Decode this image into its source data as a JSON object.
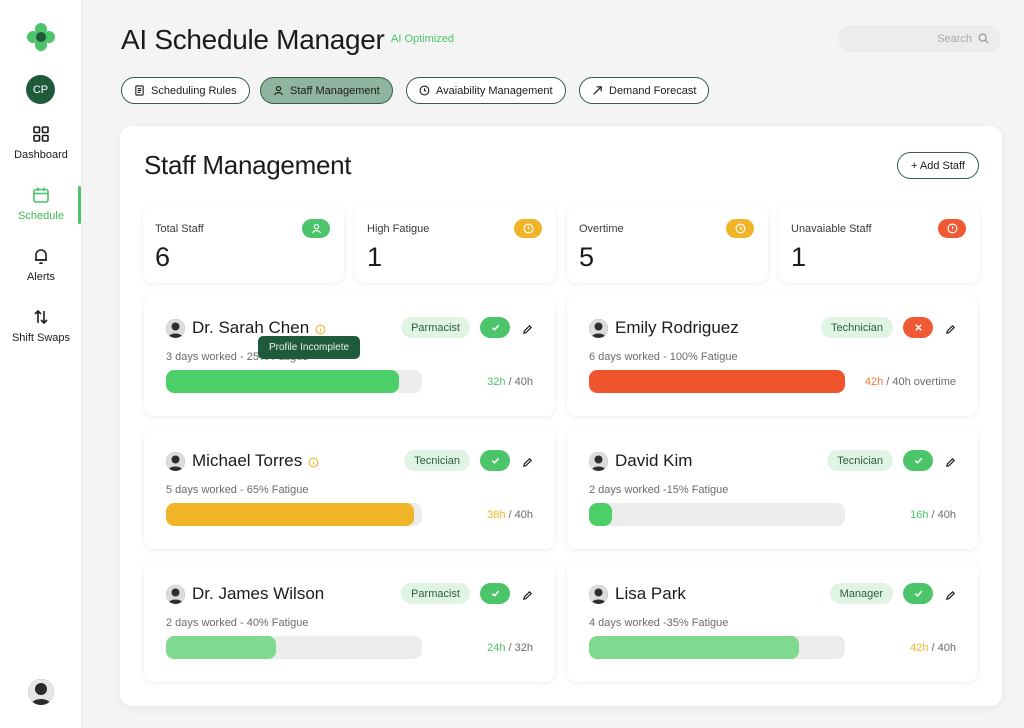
{
  "app": {
    "title": "AI Schedule Manager",
    "badge": "AI Optimized",
    "user_initials": "CP"
  },
  "search": {
    "placeholder": "Search"
  },
  "sidebar": {
    "items": [
      {
        "label": "Dashboard",
        "icon": "grid-icon"
      },
      {
        "label": "Schedule",
        "icon": "calendar-icon",
        "active": true
      },
      {
        "label": "Alerts",
        "icon": "bell-icon"
      },
      {
        "label": "Shift Swaps",
        "icon": "swap-icon"
      }
    ]
  },
  "tabs": [
    {
      "label": "Scheduling Rules",
      "icon": "document-icon"
    },
    {
      "label": "Staff Management",
      "icon": "person-icon",
      "active": true
    },
    {
      "label": "Avaiability Management",
      "icon": "clock-icon"
    },
    {
      "label": "Demand Forecast",
      "icon": "trend-arrow-icon"
    }
  ],
  "section": {
    "title": "Staff Management",
    "add_label": "+ Add Staff"
  },
  "stats": [
    {
      "label": "Total Staff",
      "value": "6",
      "color": "#4cc46a",
      "icon": "person-icon"
    },
    {
      "label": "High Fatigue",
      "value": "1",
      "color": "#f0b429",
      "icon": "alert-circle-icon"
    },
    {
      "label": "Overtime",
      "value": "5",
      "color": "#f0b429",
      "icon": "clock-icon"
    },
    {
      "label": "Unavaiable Staff",
      "value": "1",
      "color": "#ef5a34",
      "icon": "alert-circle-icon"
    }
  ],
  "staff": [
    {
      "name": "Dr. Sarah Chen",
      "role": "Parmacist",
      "status": "available",
      "detail": "3 days worked - 25% Fatigue",
      "hours_worked": "32h",
      "hours_total": " / 40h",
      "hours_color": "#4cc46a",
      "progress": 0.91,
      "bar_color": "#4ccf68",
      "has_warning": true
    },
    {
      "name": "Emily Rodriguez",
      "role": "Technician",
      "status": "unavailable",
      "detail": "6 days worked - 100% Fatigue",
      "hours_worked": "42h",
      "hours_total": " / 40h overtime",
      "hours_color": "#ef7a34",
      "progress": 1.0,
      "bar_color": "#f0542d",
      "has_warning": false
    },
    {
      "name": "Michael Torres",
      "role": "Tecnician",
      "status": "available",
      "detail": "5 days worked - 65% Fatigue",
      "hours_worked": "38h",
      "hours_total": " / 40h",
      "hours_color": "#f0b429",
      "progress": 0.97,
      "bar_color": "#f0b429",
      "has_warning": true
    },
    {
      "name": "David Kim",
      "role": "Tecnician",
      "status": "available",
      "detail": "2 days worked -15% Fatigue",
      "hours_worked": "16h",
      "hours_total": " / 40h",
      "hours_color": "#4cc46a",
      "progress": 0.09,
      "bar_color": "#4ccf68",
      "has_warning": false
    },
    {
      "name": "Dr. James Wilson",
      "role": "Parmacist",
      "status": "available",
      "detail": "2 days worked - 40% Fatigue",
      "hours_worked": "24h",
      "hours_total": " / 32h",
      "hours_color": "#4cc46a",
      "progress": 0.43,
      "bar_color": "#7fd98f",
      "has_warning": false
    },
    {
      "name": "Lisa Park",
      "role": "Manager",
      "status": "available",
      "detail": "4 days worked -35% Fatigue",
      "hours_worked": "42h",
      "hours_total": " / 40h",
      "hours_color": "#f0b429",
      "progress": 0.82,
      "bar_color": "#7fd98f",
      "has_warning": false
    }
  ],
  "tooltip": {
    "text": "Profile Incomplete"
  },
  "colors": {
    "accent": "#4cc46a",
    "brand_dark": "#1f5a3b",
    "warning": "#f0b429",
    "danger": "#ef5a34"
  }
}
